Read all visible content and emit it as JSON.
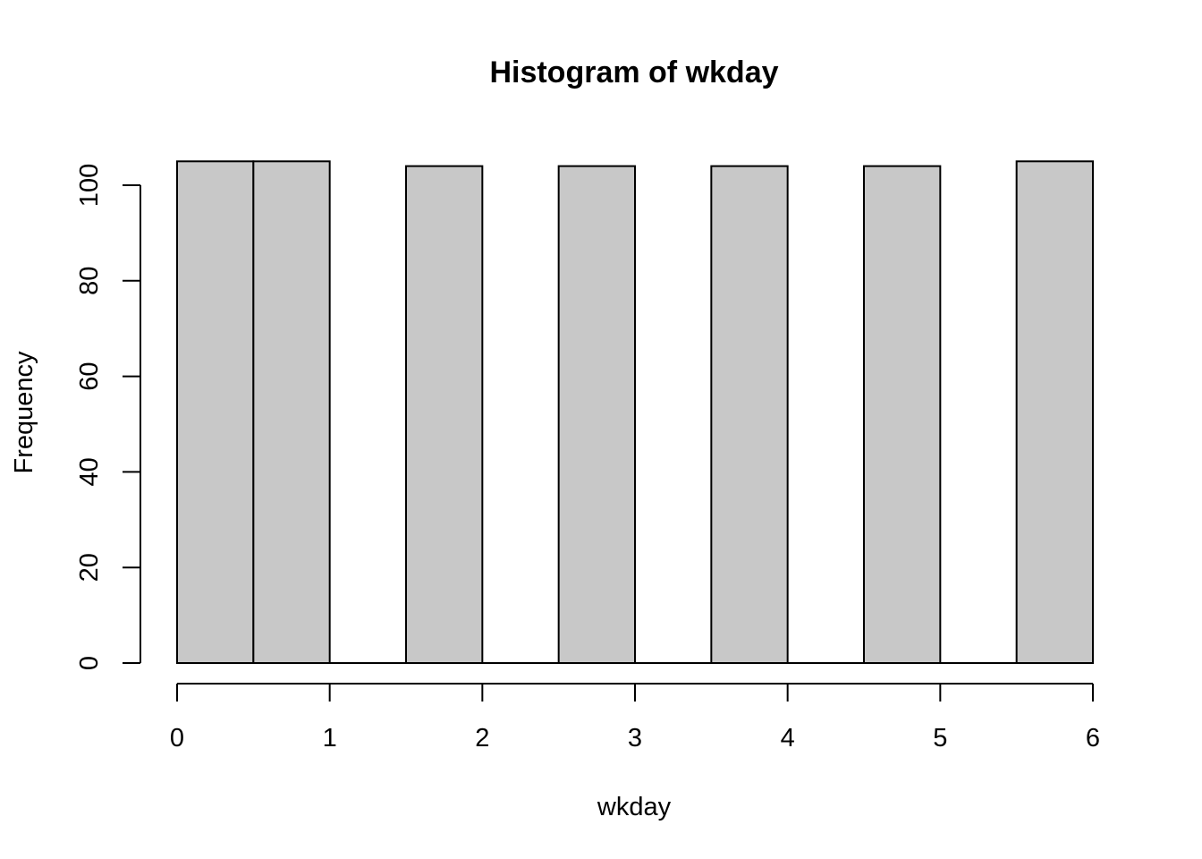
{
  "chart_data": {
    "type": "bar",
    "title": "Histogram of wkday",
    "xlabel": "wkday",
    "ylabel": "Frequency",
    "bins": [
      {
        "start": 0.0,
        "end": 0.5,
        "count": 105
      },
      {
        "start": 0.5,
        "end": 1.0,
        "count": 105
      },
      {
        "start": 1.0,
        "end": 1.5,
        "count": 0
      },
      {
        "start": 1.5,
        "end": 2.0,
        "count": 104
      },
      {
        "start": 2.0,
        "end": 2.5,
        "count": 0
      },
      {
        "start": 2.5,
        "end": 3.0,
        "count": 104
      },
      {
        "start": 3.0,
        "end": 3.5,
        "count": 0
      },
      {
        "start": 3.5,
        "end": 4.0,
        "count": 104
      },
      {
        "start": 4.0,
        "end": 4.5,
        "count": 0
      },
      {
        "start": 4.5,
        "end": 5.0,
        "count": 104
      },
      {
        "start": 5.0,
        "end": 5.5,
        "count": 0
      },
      {
        "start": 5.5,
        "end": 6.0,
        "count": 105
      }
    ],
    "xlim": [
      0,
      6
    ],
    "ylim": [
      0,
      105
    ],
    "x_ticks": [
      "0",
      "1",
      "2",
      "3",
      "4",
      "5",
      "6"
    ],
    "y_ticks": [
      "0",
      "20",
      "40",
      "60",
      "80",
      "100"
    ],
    "bar_fill": "#c8c8c8",
    "bar_stroke": "#000000",
    "grid": false,
    "legend": "none"
  }
}
